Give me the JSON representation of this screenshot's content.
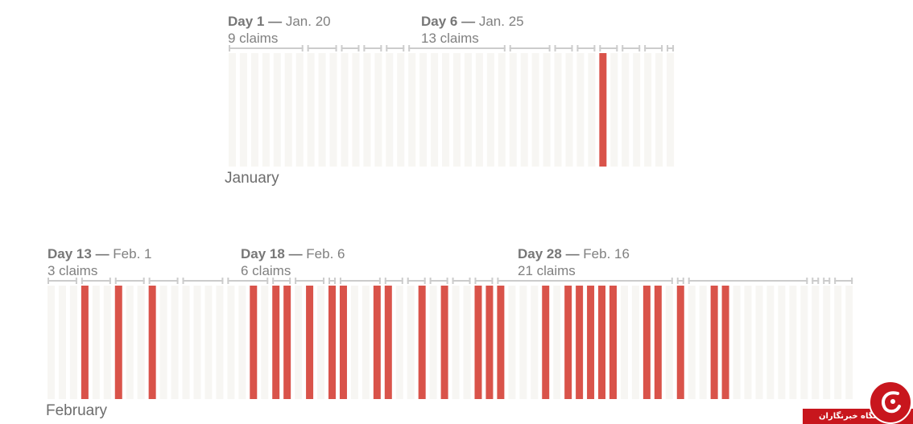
{
  "chart_data": [
    {
      "type": "bar",
      "month_label": "January",
      "slot_count": 40,
      "highlighted_slots": [
        33
      ],
      "annotations": [
        {
          "day": "Day 1",
          "dash": "—",
          "date": "Jan. 20",
          "claims": "9 claims"
        },
        {
          "day": "Day 6",
          "dash": "—",
          "date": "Jan. 25",
          "claims": "13 claims"
        }
      ]
    },
    {
      "type": "bar",
      "month_label": "February",
      "slot_count": 72,
      "highlighted_slots": [
        3,
        6,
        9,
        18,
        20,
        21,
        23,
        25,
        26,
        29,
        30,
        33,
        35,
        38,
        39,
        40,
        44,
        46,
        47,
        48,
        49,
        50,
        53,
        54,
        56,
        59,
        60
      ],
      "annotations": [
        {
          "day": "Day 13",
          "dash": "—",
          "date": "Feb. 1",
          "claims": "3 claims"
        },
        {
          "day": "Day 18",
          "dash": "—",
          "date": "Feb. 6",
          "claims": "6 claims"
        },
        {
          "day": "Day 28",
          "dash": "—",
          "date": "Feb. 16",
          "claims": "21 claims"
        }
      ]
    }
  ],
  "colors": {
    "highlight": "#d9534a",
    "empty": "#f7f6f3",
    "bracket": "#cccccc",
    "badge": "#c8161d"
  },
  "badge": {
    "icon": "logo-icon",
    "text": "باشگاه خبرنگاران"
  }
}
